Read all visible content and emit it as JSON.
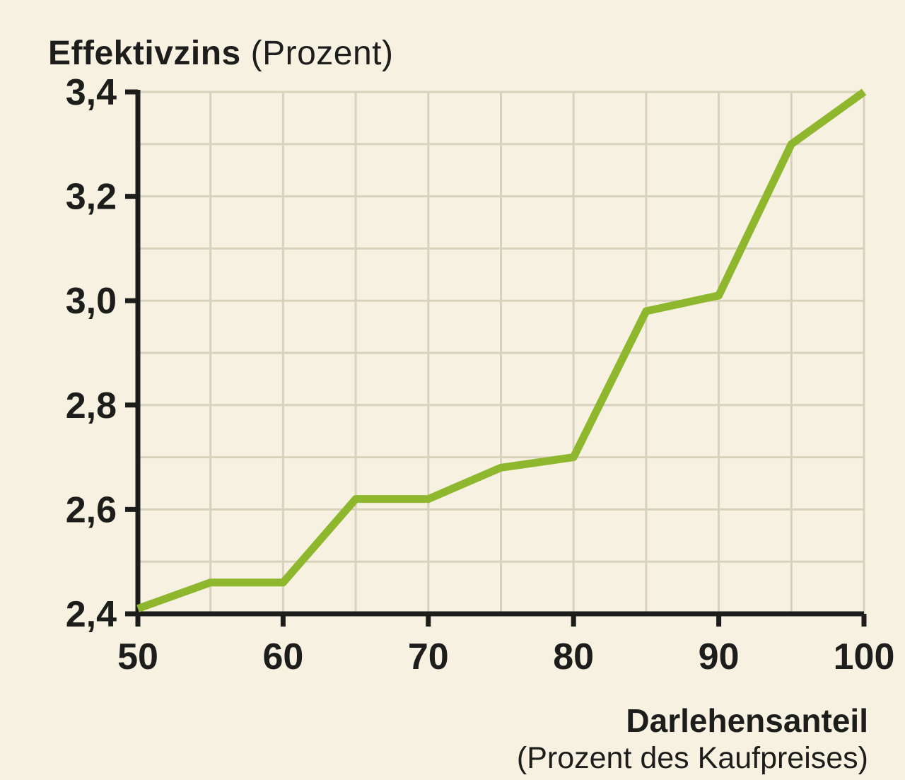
{
  "chart_data": {
    "type": "line",
    "title": "Effektivzins",
    "title_unit": "(Prozent)",
    "xlabel": "Darlehensanteil",
    "xlabel_unit": "(Prozent des Kaufpreises)",
    "x": [
      50,
      55,
      60,
      65,
      70,
      75,
      80,
      85,
      90,
      95,
      100
    ],
    "values": [
      2.41,
      2.46,
      2.46,
      2.62,
      2.62,
      2.68,
      2.7,
      2.98,
      3.01,
      3.3,
      3.4
    ],
    "xlim": [
      50,
      100
    ],
    "ylim": [
      2.4,
      3.4
    ],
    "x_ticks": [
      {
        "value": 50,
        "label": "50"
      },
      {
        "value": 60,
        "label": "60"
      },
      {
        "value": 70,
        "label": "70"
      },
      {
        "value": 80,
        "label": "80"
      },
      {
        "value": 90,
        "label": "90"
      },
      {
        "value": 100,
        "label": "100"
      }
    ],
    "y_ticks": [
      {
        "value": 2.4,
        "label": "2,4"
      },
      {
        "value": 2.6,
        "label": "2,6"
      },
      {
        "value": 2.8,
        "label": "2,8"
      },
      {
        "value": 3.0,
        "label": "3,0"
      },
      {
        "value": 3.2,
        "label": "3,2"
      },
      {
        "value": 3.4,
        "label": "3,4"
      }
    ],
    "x_grid_step": 5,
    "y_grid_step": 0.1,
    "grid": true,
    "legend": "none",
    "colors": {
      "line": "#8fb72e",
      "background": "#f6f1e0",
      "grid": "#d8d2bd",
      "axis": "#1d1d1b",
      "text": "#1d1d1b"
    }
  }
}
